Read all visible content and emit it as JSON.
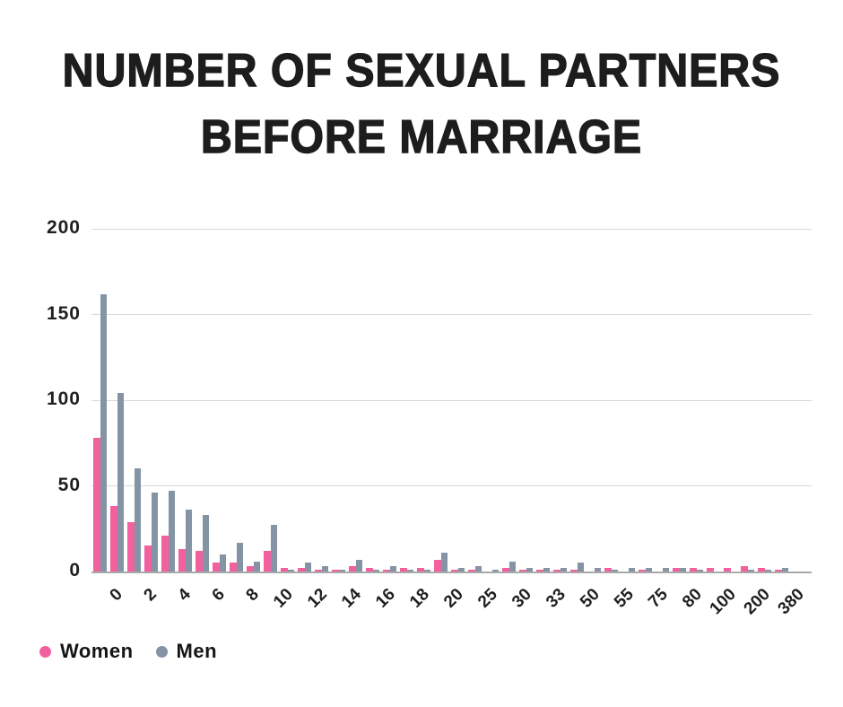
{
  "title": {
    "line1": "NUMBER OF SEXUAL PARTNERS",
    "line2": "BEFORE MARRIAGE"
  },
  "chart_data": {
    "type": "bar",
    "title": "NUMBER OF SEXUAL PARTNERS BEFORE MARRIAGE",
    "xlabel": "",
    "ylabel": "",
    "ylim": [
      0,
      200
    ],
    "yticks": [
      0,
      50,
      100,
      150,
      200
    ],
    "grid": true,
    "legend_position": "bottom-left",
    "categories": [
      "0",
      "",
      "2",
      "",
      "4",
      "",
      "6",
      "",
      "8",
      "",
      "10",
      "",
      "12",
      "",
      "14",
      "",
      "16",
      "",
      "18",
      "",
      "20",
      "",
      "25",
      "",
      "30",
      "",
      "33",
      "",
      "50",
      "",
      "55",
      "",
      "75",
      "",
      "80",
      "",
      "100",
      "",
      "200",
      "",
      "380"
    ],
    "series": [
      {
        "name": "Women",
        "color": "#F2619E",
        "values": [
          78,
          38,
          29,
          15,
          21,
          13,
          12,
          5,
          5,
          3,
          12,
          2,
          2,
          1,
          1,
          3,
          2,
          1,
          2,
          2,
          7,
          1,
          1,
          0,
          2,
          1,
          1,
          1,
          1,
          0,
          2,
          0,
          1,
          0,
          2,
          2,
          2,
          2,
          3,
          2,
          1
        ]
      },
      {
        "name": "Men",
        "color": "#8494A4",
        "values": [
          162,
          104,
          60,
          46,
          47,
          36,
          33,
          10,
          17,
          6,
          27,
          1,
          5,
          3,
          1,
          7,
          1,
          3,
          1,
          1,
          11,
          2,
          3,
          1,
          6,
          2,
          2,
          2,
          5,
          2,
          1,
          2,
          2,
          2,
          2,
          1,
          0,
          0,
          1,
          1,
          2
        ]
      }
    ]
  }
}
